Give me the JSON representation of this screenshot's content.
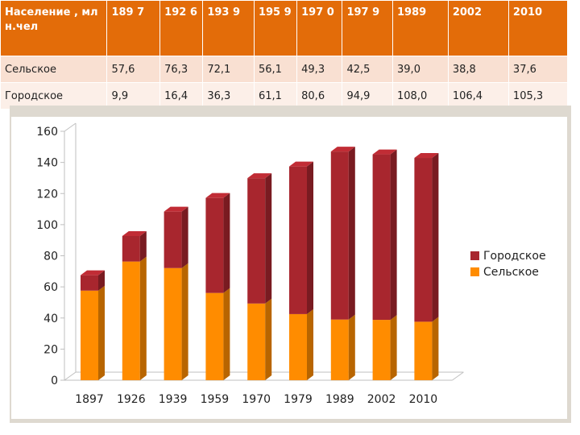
{
  "table": {
    "header": [
      "Население , млн.чел",
      "189 7",
      "192 6",
      "193 9",
      "195 9",
      "197 0",
      "197 9",
      "1989",
      "2002",
      "2010"
    ],
    "rows": [
      [
        "Сельское",
        "57,6",
        "76,3",
        "72,1",
        "56,1",
        "49,3",
        "42,5",
        "39,0",
        "38,8",
        "37,6"
      ],
      [
        "Городское",
        "9,9",
        "16,4",
        "36,3",
        "61,1",
        "80,6",
        "94,9",
        "108,0",
        "106,4",
        "105,3"
      ]
    ]
  },
  "chart_data": {
    "type": "bar",
    "stacked": true,
    "categories": [
      "1897",
      "1926",
      "1939",
      "1959",
      "1970",
      "1979",
      "1989",
      "2002",
      "2010"
    ],
    "series": [
      {
        "name": "Сельское",
        "color": "#ff8c00",
        "values": [
          57.6,
          76.3,
          72.1,
          56.1,
          49.3,
          42.5,
          39.0,
          38.8,
          37.6
        ]
      },
      {
        "name": "Городское",
        "color": "#a8262e",
        "values": [
          9.9,
          16.4,
          36.3,
          61.1,
          80.6,
          94.9,
          108.0,
          106.4,
          105.3
        ]
      }
    ],
    "ylim": [
      0,
      160
    ],
    "yticks": [
      "0",
      "20",
      "40",
      "60",
      "80",
      "100",
      "120",
      "140",
      "160"
    ],
    "legend": [
      "Городское",
      "Сельское"
    ],
    "legend_position": "right",
    "grid": false
  }
}
